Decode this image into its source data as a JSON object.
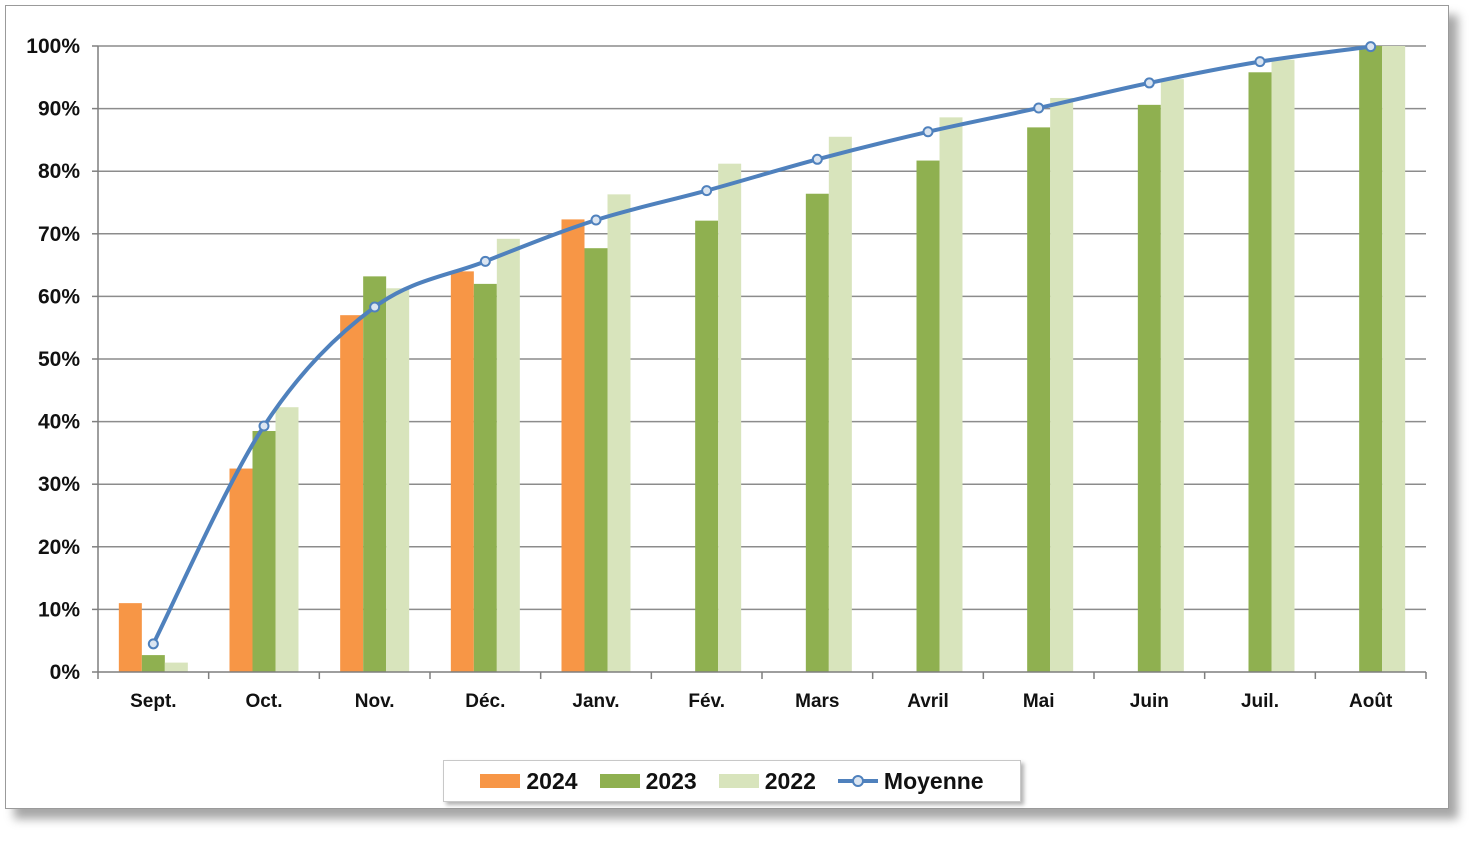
{
  "chart_data": {
    "type": "bar",
    "categories": [
      "Sept.",
      "Oct.",
      "Nov.",
      "Déc.",
      "Janv.",
      "Fév.",
      "Mars",
      "Avril",
      "Mai",
      "Juin",
      "Juil.",
      "Août"
    ],
    "series": [
      {
        "name": "2024",
        "kind": "bar",
        "color": "#f79646",
        "values": [
          11,
          32.5,
          57,
          64,
          72.3,
          null,
          null,
          null,
          null,
          null,
          null,
          null
        ]
      },
      {
        "name": "2023",
        "kind": "bar",
        "color": "#8fb050",
        "values": [
          2.7,
          38.5,
          63.2,
          62,
          67.7,
          72.1,
          76.4,
          81.7,
          87,
          90.6,
          95.8,
          100
        ]
      },
      {
        "name": "2022",
        "kind": "bar",
        "color": "#d8e4bc",
        "values": [
          1.5,
          42.3,
          61.3,
          69.2,
          76.3,
          81.2,
          85.5,
          88.6,
          91.7,
          94.7,
          97.8,
          100
        ]
      },
      {
        "name": "Moyenne",
        "kind": "line",
        "color": "#4f81bd",
        "values": [
          4.5,
          39.3,
          58.3,
          65.6,
          72.2,
          76.9,
          81.9,
          86.3,
          90.1,
          94.1,
          97.5,
          99.9
        ]
      }
    ],
    "y_ticks": [
      "0%",
      "10%",
      "20%",
      "30%",
      "40%",
      "50%",
      "60%",
      "70%",
      "80%",
      "90%",
      "100%"
    ],
    "ylim": [
      0,
      100
    ],
    "grid": true,
    "legend_position": "bottom",
    "title": "",
    "xlabel": "",
    "ylabel": ""
  }
}
